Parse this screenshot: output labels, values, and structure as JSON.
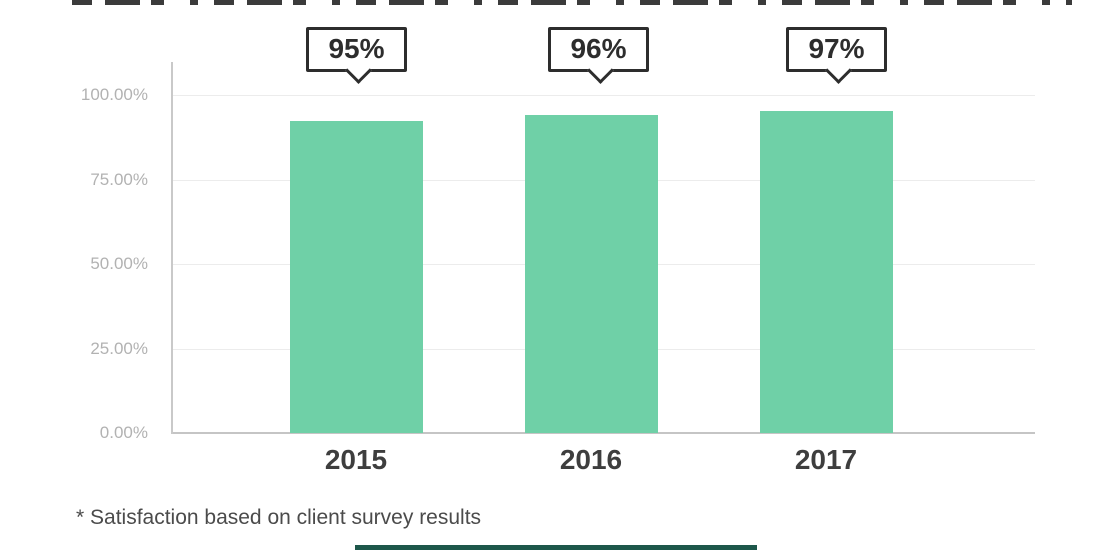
{
  "chart_data": {
    "type": "bar",
    "title": "",
    "xlabel": "",
    "ylabel": "",
    "categories": [
      "2015",
      "2016",
      "2017"
    ],
    "values": [
      95,
      96,
      97
    ],
    "value_labels": [
      "95%",
      "96%",
      "97%"
    ],
    "rendered_heights_pct": [
      92.3,
      94.1,
      95.3
    ],
    "ylim": [
      0,
      100
    ],
    "yticks": [
      {
        "value": 100,
        "label": "100.00%"
      },
      {
        "value": 75,
        "label": "75.00%"
      },
      {
        "value": 50,
        "label": "50.00%"
      },
      {
        "value": 25,
        "label": "25.00%"
      },
      {
        "value": 0,
        "label": "0.00%"
      }
    ],
    "grid": true,
    "legend_position": "none",
    "bar_color": "#6FD0A7",
    "footnote": "* Satisfaction based on client survey results"
  },
  "colors": {
    "background": "#ffffff",
    "bar": "#6FD0A7",
    "callout_border": "#2d2d2d",
    "callout_text": "#2d2d2d",
    "grid_line": "#ececec",
    "axis_line": "#c9c9c9",
    "baseline": "#c5c5c5",
    "y_tick_text": "#b2b2b2",
    "x_tick_text": "#3e3e3e",
    "footnote_text": "#4b4b4b",
    "top_artifact": "#3b3b3b",
    "bottom_artifact": "#1d574a"
  },
  "decorations": {
    "top_edge": "cropped-text-line-remnant",
    "bottom_edge": "cropped-element-strip"
  }
}
